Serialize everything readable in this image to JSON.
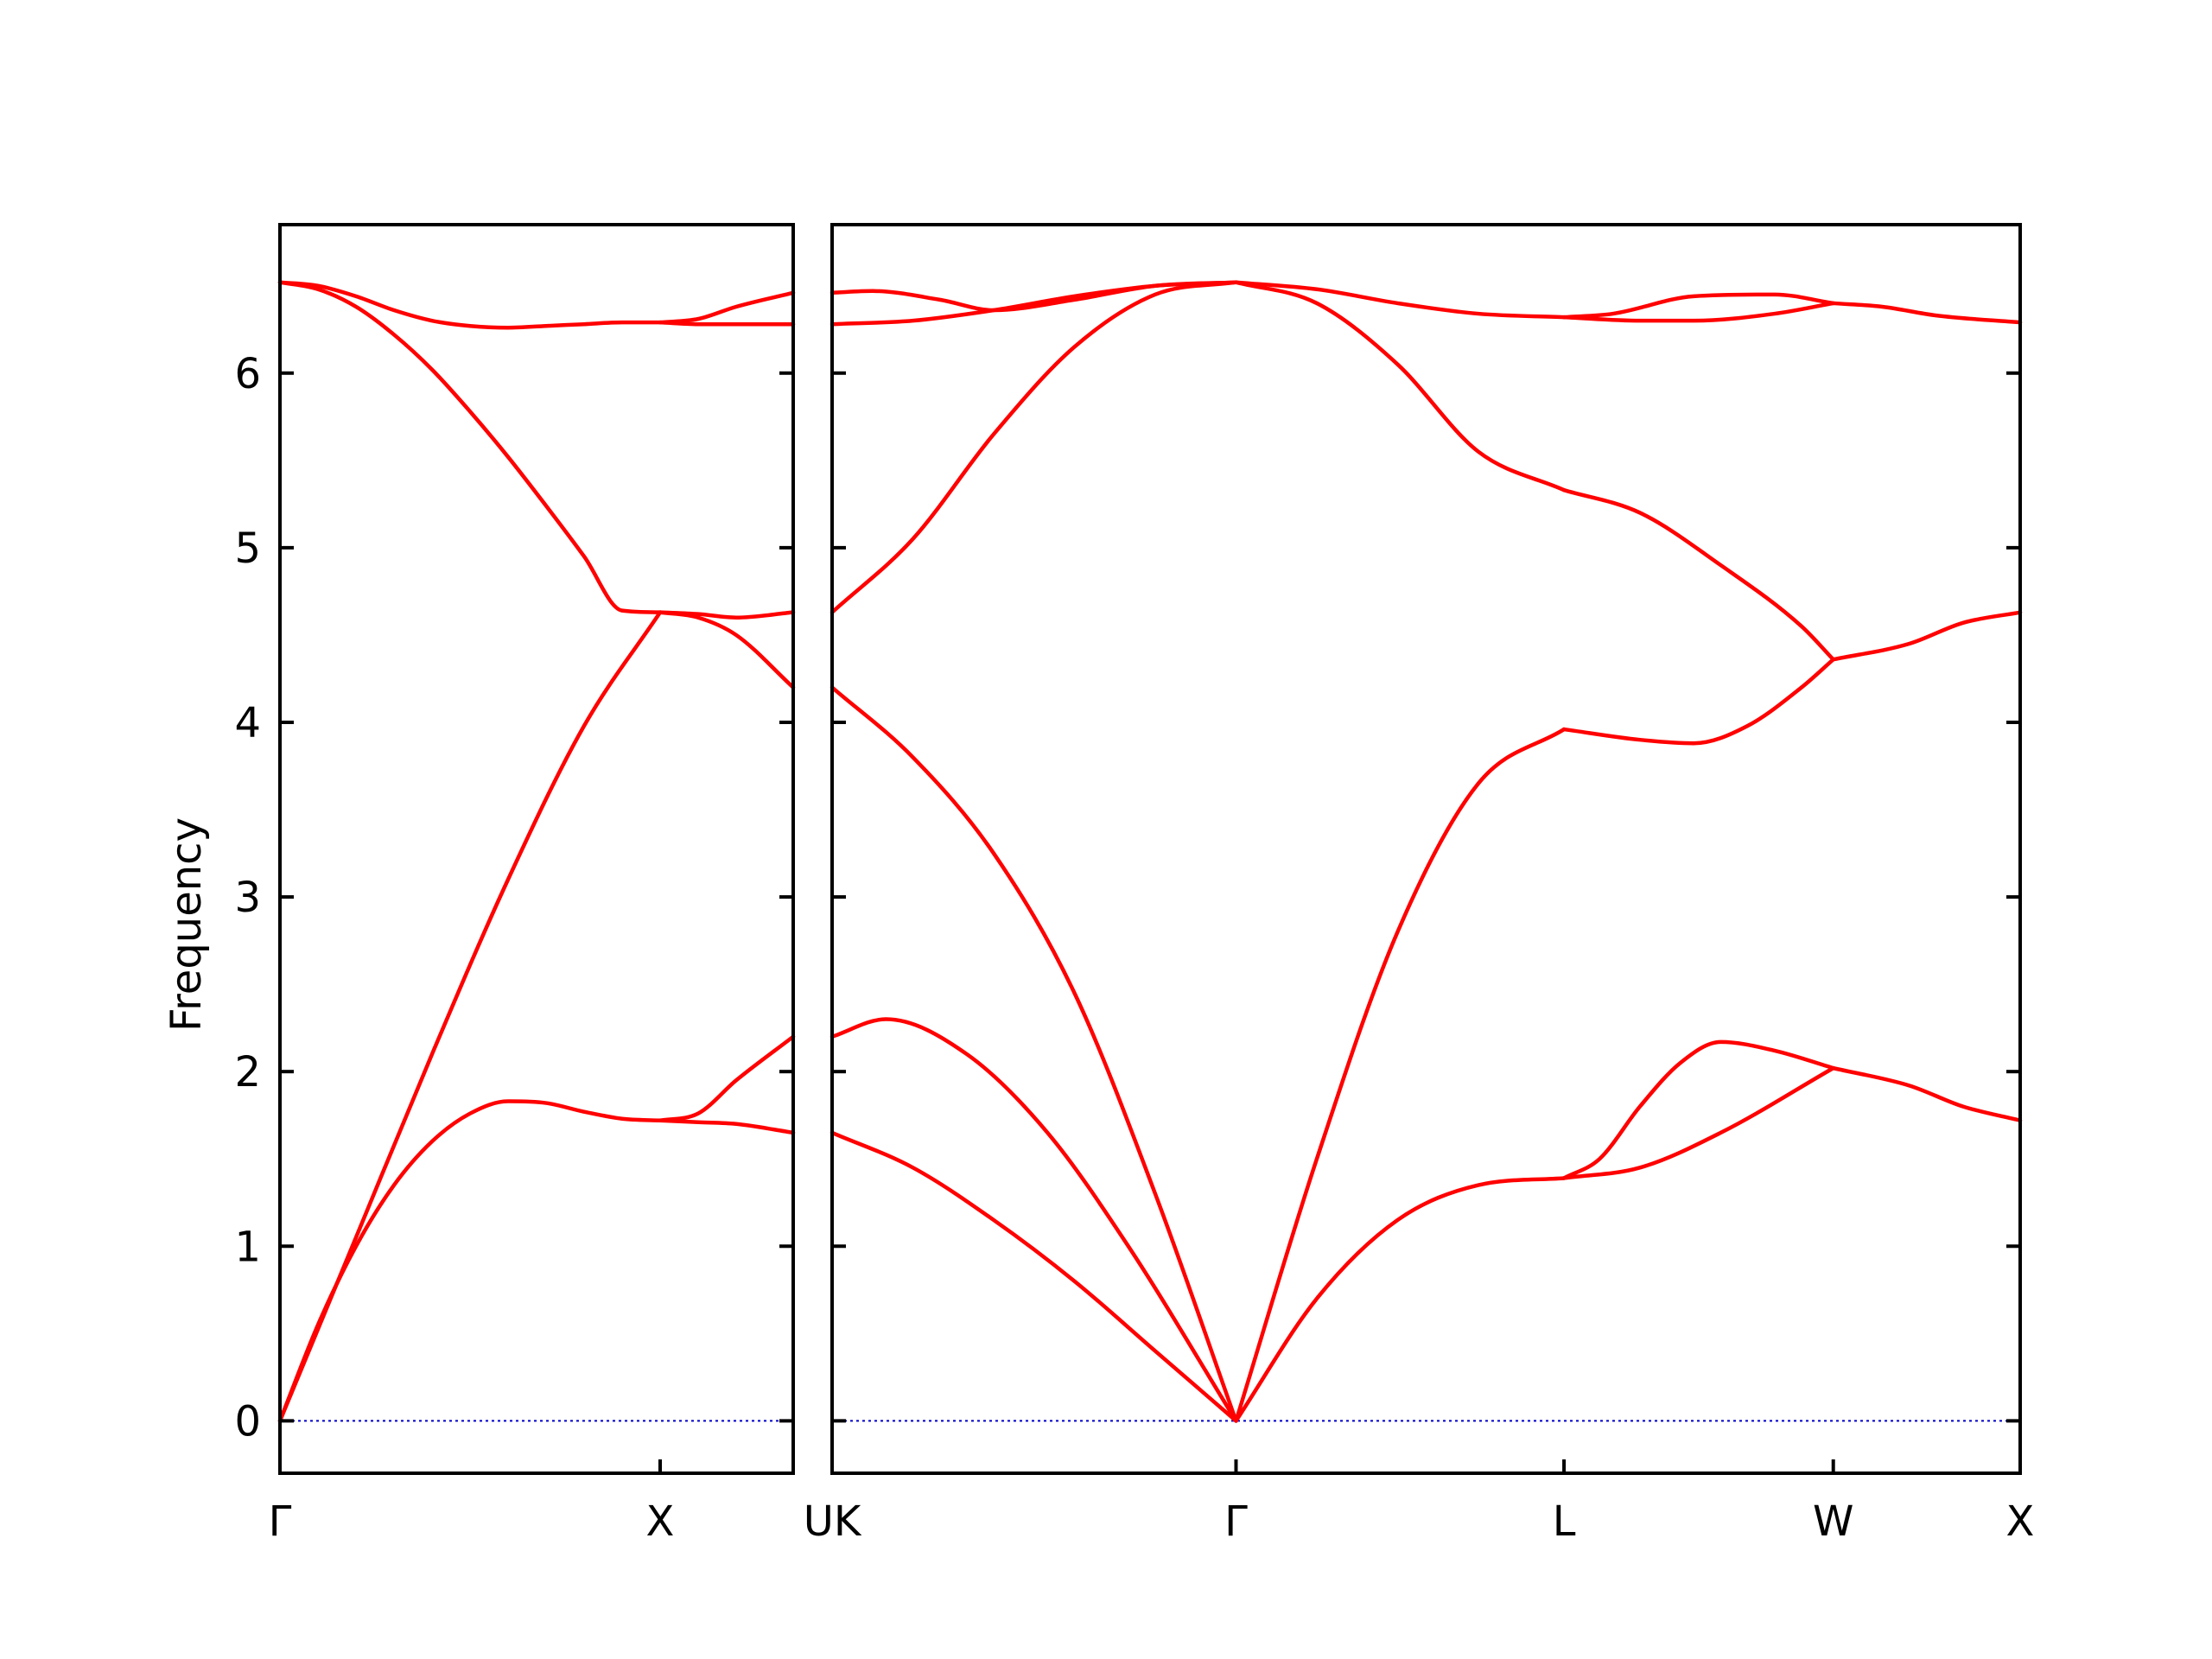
{
  "chart_data": {
    "type": "line",
    "title": "",
    "ylabel": "Frequency",
    "ylim": [
      -0.3,
      6.85
    ],
    "yticks": [
      0,
      1,
      2,
      3,
      4,
      5,
      6
    ],
    "grid": false,
    "legend": "none",
    "colors": {
      "bands": "#ff0000",
      "zero_line": "#0000cc",
      "axes": "#000000"
    },
    "panels": [
      {
        "name": "panel-1",
        "xrange": [
          0,
          1.35
        ],
        "tick_positions": [
          0,
          1,
          1.35
        ],
        "tick_labels": [
          "Γ",
          "X",
          ""
        ],
        "series": [
          {
            "x": [
              0,
              0.1,
              0.2,
              0.3,
              0.4,
              0.5,
              0.6,
              0.7,
              0.8,
              0.9,
              1.0
            ],
            "values": [
              0,
              0.55,
              1.0,
              1.35,
              1.6,
              1.76,
              1.83,
              1.82,
              1.77,
              1.73,
              1.72
            ]
          },
          {
            "x": [
              0,
              0.2,
              0.4,
              0.6,
              0.8,
              1.0
            ],
            "values": [
              0,
              1.05,
              2.1,
              3.1,
              3.98,
              4.63
            ]
          },
          {
            "x": [
              0,
              0.1,
              0.2,
              0.3,
              0.4,
              0.5,
              0.6,
              0.7,
              0.8,
              0.9,
              1.0
            ],
            "values": [
              6.52,
              6.48,
              6.38,
              6.22,
              6.02,
              5.78,
              5.52,
              5.24,
              4.95,
              4.64,
              4.63
            ]
          },
          {
            "x": [
              0,
              0.1,
              0.2,
              0.3,
              0.4,
              0.5,
              0.6,
              0.7,
              0.8,
              0.9,
              1.0
            ],
            "values": [
              6.52,
              6.5,
              6.44,
              6.36,
              6.3,
              6.27,
              6.26,
              6.27,
              6.28,
              6.29,
              6.29
            ]
          },
          {
            "x": [
              1.0,
              1.1,
              1.2,
              1.35
            ],
            "values": [
              1.72,
              1.71,
              1.7,
              1.65
            ]
          },
          {
            "x": [
              1.0,
              1.1,
              1.2,
              1.35
            ],
            "values": [
              1.72,
              1.76,
              1.95,
              2.2
            ]
          },
          {
            "x": [
              1.0,
              1.1,
              1.2,
              1.35
            ],
            "values": [
              4.63,
              4.6,
              4.5,
              4.2
            ]
          },
          {
            "x": [
              1.0,
              1.1,
              1.2,
              1.35
            ],
            "values": [
              4.63,
              4.62,
              4.6,
              4.63
            ]
          },
          {
            "x": [
              1.0,
              1.1,
              1.2,
              1.35
            ],
            "values": [
              6.29,
              6.28,
              6.28,
              6.28
            ]
          },
          {
            "x": [
              1.0,
              1.1,
              1.2,
              1.35
            ],
            "values": [
              6.29,
              6.31,
              6.38,
              6.46
            ]
          }
        ]
      },
      {
        "name": "panel-2",
        "xrange": [
          0,
          4.412
        ],
        "tick_positions": [
          0,
          1.5,
          2.718,
          3.718,
          4.412
        ],
        "tick_labels": [
          "UK",
          "Γ",
          "L",
          "W",
          "X"
        ],
        "series": [
          {
            "x": [
              0,
              0.3,
              0.6,
              0.9,
              1.2,
              1.5
            ],
            "values": [
              1.65,
              1.45,
              1.15,
              0.8,
              0.4,
              0
            ]
          },
          {
            "x": [
              0,
              0.2,
              0.5,
              0.8,
              1.1,
              1.5
            ],
            "values": [
              2.2,
              2.3,
              2.1,
              1.65,
              1.0,
              0
            ]
          },
          {
            "x": [
              0,
              0.3,
              0.6,
              0.9,
              1.2,
              1.5
            ],
            "values": [
              4.2,
              3.8,
              3.25,
              2.45,
              1.3,
              0
            ]
          },
          {
            "x": [
              0,
              0.3,
              0.6,
              0.9,
              1.2,
              1.5
            ],
            "values": [
              4.63,
              5.05,
              5.65,
              6.15,
              6.45,
              6.52
            ]
          },
          {
            "x": [
              0,
              0.3,
              0.6,
              0.9,
              1.2,
              1.5
            ],
            "values": [
              6.28,
              6.3,
              6.36,
              6.44,
              6.5,
              6.52
            ]
          },
          {
            "x": [
              0,
              0.15,
              0.4,
              0.6,
              0.9,
              1.2,
              1.5
            ],
            "values": [
              6.46,
              6.47,
              6.42,
              6.36,
              6.42,
              6.5,
              6.52
            ]
          },
          {
            "x": [
              1.5,
              1.8,
              2.1,
              2.4,
              2.718
            ],
            "values": [
              0,
              0.7,
              1.15,
              1.35,
              1.39
            ]
          },
          {
            "x": [
              1.5,
              1.8,
              2.1,
              2.4,
              2.718
            ],
            "values": [
              0,
              1.5,
              2.8,
              3.65,
              3.96
            ]
          },
          {
            "x": [
              1.5,
              1.8,
              2.1,
              2.4,
              2.718
            ],
            "values": [
              6.52,
              6.4,
              6.05,
              5.55,
              5.33
            ]
          },
          {
            "x": [
              1.5,
              1.8,
              2.1,
              2.4,
              2.718
            ],
            "values": [
              6.52,
              6.48,
              6.4,
              6.34,
              6.32
            ]
          },
          {
            "x": [
              2.718,
              3.0,
              3.3,
              3.718
            ],
            "values": [
              1.39,
              1.45,
              1.65,
              2.02
            ]
          },
          {
            "x": [
              2.718,
              2.85,
              3.0,
              3.15,
              3.3,
              3.5,
              3.718
            ],
            "values": [
              1.39,
              1.5,
              1.8,
              2.05,
              2.17,
              2.12,
              2.02
            ]
          },
          {
            "x": [
              2.718,
              3.0,
              3.2,
              3.4,
              3.6,
              3.718
            ],
            "values": [
              3.96,
              3.9,
              3.88,
              3.98,
              4.2,
              4.36
            ]
          },
          {
            "x": [
              2.718,
              3.0,
              3.3,
              3.6,
              3.718
            ],
            "values": [
              5.33,
              5.2,
              4.9,
              4.55,
              4.36
            ]
          },
          {
            "x": [
              2.718,
              3.0,
              3.2,
              3.5,
              3.718
            ],
            "values": [
              6.32,
              6.3,
              6.3,
              6.34,
              6.4
            ]
          },
          {
            "x": [
              2.718,
              2.9,
              3.2,
              3.5,
              3.718
            ],
            "values": [
              6.32,
              6.34,
              6.44,
              6.45,
              6.4
            ]
          },
          {
            "x": [
              3.718,
              4.0,
              4.2,
              4.412
            ],
            "values": [
              2.02,
              1.92,
              1.8,
              1.72
            ]
          },
          {
            "x": [
              3.718,
              4.0,
              4.2,
              4.412
            ],
            "values": [
              4.36,
              4.45,
              4.57,
              4.63
            ]
          },
          {
            "x": [
              3.718,
              3.9,
              4.1,
              4.412
            ],
            "values": [
              6.4,
              6.38,
              6.33,
              6.29
            ]
          }
        ]
      }
    ]
  }
}
